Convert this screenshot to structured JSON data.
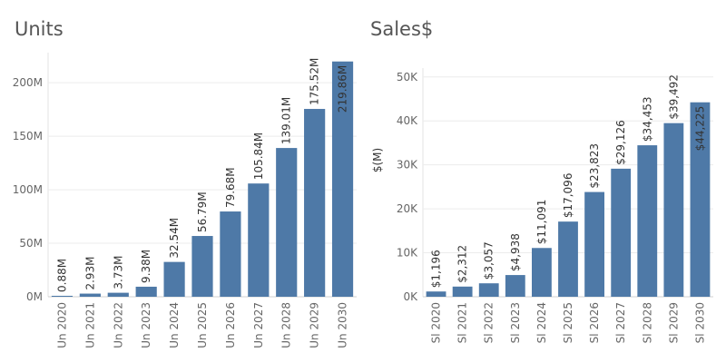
{
  "chart_data": [
    {
      "type": "bar",
      "title": "Units",
      "xlabel": "",
      "ylabel": "",
      "categories": [
        "Un 2020",
        "Un 2021",
        "Un 2022",
        "Un 2023",
        "Un 2024",
        "Un 2025",
        "Un 2026",
        "Un 2027",
        "Un 2028",
        "Un 2029",
        "Un 2030"
      ],
      "values": [
        0.88,
        2.93,
        3.73,
        9.38,
        32.54,
        56.79,
        79.68,
        105.84,
        139.01,
        175.52,
        219.86
      ],
      "data_labels": [
        "0.88M",
        "2.93M",
        "3.73M",
        "9.38M",
        "32.54M",
        "56.79M",
        "79.68M",
        "105.84M",
        "139.01M",
        "175.52M",
        "219.86M"
      ],
      "ylim": [
        0,
        240
      ],
      "yticks": [
        0,
        50,
        100,
        150,
        200
      ],
      "ytick_labels": [
        "0M",
        "50M",
        "100M",
        "150M",
        "200M"
      ],
      "grid": true,
      "bar_color": "#4e79a7"
    },
    {
      "type": "bar",
      "title": "Sales$",
      "xlabel": "",
      "ylabel": "$(M)",
      "categories": [
        "Sl 2020",
        "Sl 2021",
        "Sl 2022",
        "Sl 2023",
        "Sl 2024",
        "Sl 2025",
        "Sl 2026",
        "Sl 2027",
        "Sl 2028",
        "Sl 2029",
        "Sl 2030"
      ],
      "values": [
        1196,
        2312,
        3057,
        4938,
        11091,
        17096,
        23823,
        29126,
        34453,
        39492,
        44225
      ],
      "data_labels": [
        "$1,196",
        "$2,312",
        "$3,057",
        "$4,938",
        "$11,091",
        "$17,096",
        "$23,823",
        "$29,126",
        "$34,453",
        "$39,492",
        "$44,225"
      ],
      "ylim": [
        0,
        58000
      ],
      "yticks": [
        0,
        10000,
        20000,
        30000,
        40000,
        50000
      ],
      "ytick_labels": [
        "0K",
        "10K",
        "20K",
        "30K",
        "40K",
        "50K"
      ],
      "grid": true,
      "bar_color": "#4e79a7"
    }
  ]
}
